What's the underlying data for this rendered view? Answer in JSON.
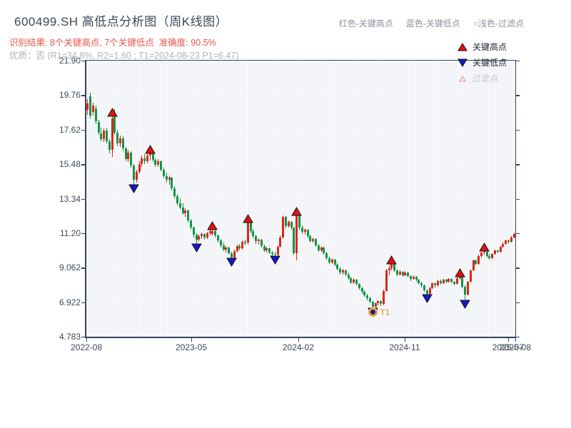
{
  "header": {
    "title": "600499.SH 高低点分析图（周K线图）",
    "top_legend": {
      "high_label": "红色-关键高点",
      "low_label": "蓝色-关键低点",
      "filter_label": "○浅色-过滤点"
    },
    "result_line": "识别结果: 8个关键高点, 7个关键低点  准确度: 90.5%",
    "quality_line": "优质：否 (R1=34.8%, R2=1.60 ; T1=2024-08-23 P1=6.47)"
  },
  "chart_data": {
    "type": "candlestick",
    "title": "600499.SH 高低点分析图（周K线图）",
    "x_axis": "weekly candles 2022-08 to 2025-08",
    "ylim": [
      4.783,
      21.9
    ],
    "grid": true,
    "y_ticks": [
      {
        "label": "21.90",
        "value": 21.9
      },
      {
        "label": "19.76",
        "value": 19.76
      },
      {
        "label": "17.62",
        "value": 17.62
      },
      {
        "label": "15.48",
        "value": 15.48
      },
      {
        "label": "13.34",
        "value": 13.34
      },
      {
        "label": "11.20",
        "value": 11.2
      },
      {
        "label": "9.062",
        "value": 9.062
      },
      {
        "label": "6.922",
        "value": 6.922
      },
      {
        "label": "4.783",
        "value": 4.783
      }
    ],
    "x_ticks": [
      {
        "label": "2022-08",
        "pos": 0.0
      },
      {
        "label": "2023-05",
        "pos": 0.2446
      },
      {
        "label": "2024-02",
        "pos": 0.494
      },
      {
        "label": "2024-11",
        "pos": 0.742
      },
      {
        "label": "2025-07",
        "pos": 0.983
      },
      {
        "label": "2025-08",
        "pos": 1.0
      }
    ],
    "legend": {
      "items": [
        {
          "label": "关键高点",
          "type": "key-high"
        },
        {
          "label": "关键低点",
          "type": "key-low"
        },
        {
          "label": "过滤点",
          "type": "filtered"
        }
      ]
    },
    "colors": {
      "up": "#e02417",
      "down": "#0e9648",
      "key_high": "#e80f0f",
      "key_low": "#1717cf",
      "t1_ring": "#f0a32f",
      "filtered": "#e09090"
    },
    "markers": {
      "key_highs": [
        {
          "week": 9,
          "price": 18.7
        },
        {
          "week": 23,
          "price": 16.4
        },
        {
          "week": 46,
          "price": 11.65
        },
        {
          "week": 59,
          "price": 12.1
        },
        {
          "week": 77,
          "price": 12.55
        },
        {
          "week": 112,
          "price": 9.55
        },
        {
          "week": 137,
          "price": 8.75
        },
        {
          "week": 146,
          "price": 10.35
        }
      ],
      "key_lows": [
        {
          "week": 17,
          "price": 13.95
        },
        {
          "week": 40,
          "price": 10.3
        },
        {
          "week": 53,
          "price": 9.4
        },
        {
          "week": 69,
          "price": 9.55
        },
        {
          "week": 105,
          "price": 6.3
        },
        {
          "week": 125,
          "price": 7.15
        },
        {
          "week": 139,
          "price": 6.8
        }
      ],
      "t1": {
        "week": 105,
        "price": 6.3,
        "label": "T1"
      }
    },
    "candles": [
      [
        18.85,
        19.5,
        18.55,
        19.25
      ],
      [
        19.7,
        19.9,
        18.3,
        18.5
      ],
      [
        18.7,
        19.3,
        18.5,
        19.1
      ],
      [
        18.95,
        19.1,
        17.95,
        18.15
      ],
      [
        18.1,
        18.25,
        17.3,
        17.45
      ],
      [
        17.4,
        17.75,
        16.9,
        17.05
      ],
      [
        17.05,
        17.7,
        16.85,
        17.55
      ],
      [
        17.55,
        17.75,
        16.75,
        16.9
      ],
      [
        16.9,
        17.05,
        16.15,
        16.35
      ],
      [
        16.35,
        18.5,
        15.95,
        18.3
      ],
      [
        18.6,
        18.9,
        17.3,
        17.45
      ],
      [
        17.45,
        17.6,
        16.6,
        16.75
      ],
      [
        16.75,
        17.25,
        16.55,
        17.1
      ],
      [
        17.1,
        17.2,
        16.3,
        16.45
      ],
      [
        16.45,
        16.55,
        15.65,
        15.8
      ],
      [
        15.8,
        16.35,
        15.6,
        16.2
      ],
      [
        16.2,
        16.3,
        15.25,
        15.4
      ],
      [
        15.4,
        15.5,
        14.2,
        14.5
      ],
      [
        14.5,
        15.15,
        14.35,
        15.0
      ],
      [
        15.0,
        15.65,
        14.9,
        15.5
      ],
      [
        15.5,
        16.0,
        15.3,
        15.85
      ],
      [
        15.85,
        16.1,
        15.5,
        15.65
      ],
      [
        15.65,
        16.1,
        15.55,
        16.0
      ],
      [
        16.0,
        16.3,
        15.7,
        16.15
      ],
      [
        16.15,
        16.2,
        15.6,
        15.75
      ],
      [
        15.75,
        15.85,
        15.3,
        15.45
      ],
      [
        15.45,
        15.8,
        15.3,
        15.65
      ],
      [
        15.65,
        15.7,
        15.05,
        15.15
      ],
      [
        15.15,
        15.25,
        14.6,
        14.75
      ],
      [
        14.75,
        14.95,
        14.35,
        14.5
      ],
      [
        14.5,
        14.8,
        14.2,
        14.65
      ],
      [
        14.65,
        14.7,
        13.85,
        14.0
      ],
      [
        14.0,
        14.1,
        13.35,
        13.5
      ],
      [
        13.5,
        13.65,
        12.9,
        13.05
      ],
      [
        13.05,
        13.35,
        12.7,
        12.8
      ],
      [
        12.8,
        13.05,
        12.35,
        12.45
      ],
      [
        12.45,
        12.75,
        12.2,
        12.6
      ],
      [
        12.6,
        12.65,
        11.85,
        12.0
      ],
      [
        12.0,
        12.1,
        11.4,
        11.55
      ],
      [
        11.55,
        11.65,
        10.95,
        11.1
      ],
      [
        11.1,
        11.2,
        10.55,
        10.8
      ],
      [
        10.8,
        11.1,
        10.7,
        11.0
      ],
      [
        11.0,
        11.25,
        10.85,
        11.15
      ],
      [
        11.15,
        11.2,
        10.8,
        10.95
      ],
      [
        10.95,
        11.3,
        10.85,
        11.2
      ],
      [
        11.2,
        11.45,
        11.05,
        11.35
      ],
      [
        11.15,
        11.45,
        11.05,
        11.35
      ],
      [
        11.35,
        11.4,
        10.95,
        11.05
      ],
      [
        11.05,
        11.1,
        10.6,
        10.75
      ],
      [
        10.75,
        10.85,
        10.3,
        10.45
      ],
      [
        10.45,
        10.6,
        10.1,
        10.2
      ],
      [
        10.2,
        10.4,
        10.0,
        10.3
      ],
      [
        10.3,
        10.35,
        9.85,
        9.95
      ],
      [
        9.95,
        10.05,
        9.55,
        9.7
      ],
      [
        9.7,
        10.2,
        9.65,
        10.1
      ],
      [
        10.1,
        10.5,
        10.0,
        10.4
      ],
      [
        10.4,
        10.55,
        10.15,
        10.25
      ],
      [
        10.25,
        10.75,
        10.2,
        10.65
      ],
      [
        10.65,
        10.8,
        10.45,
        10.6
      ],
      [
        10.6,
        12.0,
        10.5,
        11.85
      ],
      [
        11.85,
        11.9,
        11.2,
        11.35
      ],
      [
        11.35,
        11.45,
        10.9,
        11.0
      ],
      [
        11.0,
        11.1,
        10.55,
        10.7
      ],
      [
        10.7,
        10.9,
        10.5,
        10.8
      ],
      [
        10.8,
        10.85,
        10.3,
        10.4
      ],
      [
        10.4,
        10.5,
        10.05,
        10.15
      ],
      [
        10.15,
        10.35,
        10.0,
        10.25
      ],
      [
        10.25,
        10.3,
        9.9,
        10.0
      ],
      [
        10.0,
        10.1,
        9.8,
        9.9
      ],
      [
        9.9,
        10.05,
        9.7,
        9.85
      ],
      [
        9.85,
        10.45,
        9.8,
        10.35
      ],
      [
        10.35,
        11.05,
        10.3,
        10.95
      ],
      [
        10.95,
        12.3,
        10.9,
        12.2
      ],
      [
        12.2,
        12.25,
        11.5,
        11.65
      ],
      [
        11.65,
        12.0,
        11.55,
        11.9
      ],
      [
        11.9,
        11.95,
        11.4,
        11.55
      ],
      [
        11.55,
        11.6,
        9.85,
        9.95
      ],
      [
        9.95,
        12.45,
        9.5,
        12.3
      ],
      [
        12.3,
        12.35,
        11.4,
        11.55
      ],
      [
        11.55,
        11.7,
        11.15,
        11.3
      ],
      [
        11.3,
        11.5,
        11.1,
        11.4
      ],
      [
        11.4,
        11.45,
        10.9,
        11.0
      ],
      [
        11.0,
        11.1,
        10.6,
        10.7
      ],
      [
        10.7,
        10.95,
        10.6,
        10.85
      ],
      [
        10.85,
        10.9,
        10.35,
        10.45
      ],
      [
        10.45,
        10.55,
        10.05,
        10.15
      ],
      [
        10.15,
        10.4,
        10.05,
        10.3
      ],
      [
        10.3,
        10.35,
        9.85,
        9.95
      ],
      [
        9.95,
        10.05,
        9.55,
        9.65
      ],
      [
        9.65,
        9.75,
        9.3,
        9.4
      ],
      [
        9.4,
        9.65,
        9.3,
        9.55
      ],
      [
        9.55,
        9.6,
        9.15,
        9.25
      ],
      [
        9.25,
        9.35,
        8.9,
        9.0
      ],
      [
        9.0,
        9.1,
        8.65,
        8.75
      ],
      [
        8.75,
        9.0,
        8.65,
        8.9
      ],
      [
        8.9,
        8.95,
        8.55,
        8.65
      ],
      [
        8.65,
        8.75,
        8.3,
        8.4
      ],
      [
        8.4,
        8.5,
        8.05,
        8.15
      ],
      [
        8.15,
        8.4,
        8.05,
        8.3
      ],
      [
        8.3,
        8.35,
        7.95,
        8.05
      ],
      [
        8.05,
        8.1,
        7.7,
        7.8
      ],
      [
        7.8,
        7.9,
        7.45,
        7.55
      ],
      [
        7.55,
        7.65,
        7.25,
        7.35
      ],
      [
        7.35,
        7.45,
        7.05,
        7.15
      ],
      [
        7.15,
        7.25,
        6.85,
        6.95
      ],
      [
        6.95,
        7.0,
        6.47,
        6.65
      ],
      [
        6.65,
        6.9,
        6.6,
        6.85
      ],
      [
        6.85,
        7.05,
        6.75,
        7.0
      ],
      [
        7.0,
        7.05,
        6.7,
        6.8
      ],
      [
        6.8,
        7.7,
        6.75,
        7.6
      ],
      [
        7.6,
        9.0,
        7.55,
        8.9
      ],
      [
        8.9,
        9.2,
        8.6,
        9.05
      ],
      [
        9.05,
        9.45,
        8.9,
        9.3
      ],
      [
        9.3,
        9.35,
        8.8,
        8.9
      ],
      [
        8.9,
        8.95,
        8.55,
        8.65
      ],
      [
        8.65,
        8.9,
        8.6,
        8.8
      ],
      [
        8.8,
        8.85,
        8.5,
        8.6
      ],
      [
        8.6,
        8.85,
        8.55,
        8.75
      ],
      [
        8.75,
        8.8,
        8.45,
        8.55
      ],
      [
        8.55,
        8.6,
        8.25,
        8.35
      ],
      [
        8.35,
        8.6,
        8.3,
        8.5
      ],
      [
        8.5,
        8.55,
        8.2,
        8.3
      ],
      [
        8.3,
        8.35,
        8.0,
        8.1
      ],
      [
        8.1,
        8.2,
        7.85,
        7.95
      ],
      [
        7.95,
        8.0,
        7.55,
        7.65
      ],
      [
        7.65,
        7.7,
        7.3,
        7.45
      ],
      [
        7.45,
        7.9,
        7.4,
        7.8
      ],
      [
        7.8,
        8.15,
        7.75,
        8.1
      ],
      [
        8.1,
        8.15,
        7.85,
        7.95
      ],
      [
        7.95,
        8.3,
        7.9,
        8.25
      ],
      [
        8.25,
        8.3,
        8.0,
        8.1
      ],
      [
        8.1,
        8.35,
        8.05,
        8.3
      ],
      [
        8.3,
        8.35,
        8.1,
        8.2
      ],
      [
        8.2,
        8.4,
        8.15,
        8.35
      ],
      [
        8.35,
        8.4,
        8.1,
        8.2
      ],
      [
        8.2,
        8.25,
        7.95,
        8.05
      ],
      [
        8.05,
        8.45,
        8.0,
        8.4
      ],
      [
        8.4,
        8.65,
        8.3,
        8.55
      ],
      [
        8.55,
        8.6,
        7.8,
        7.9
      ],
      [
        7.9,
        7.95,
        7.1,
        7.4
      ],
      [
        7.4,
        8.25,
        7.35,
        8.2
      ],
      [
        8.2,
        8.95,
        8.15,
        8.9
      ],
      [
        8.9,
        9.55,
        8.85,
        9.5
      ],
      [
        9.5,
        9.55,
        9.2,
        9.3
      ],
      [
        9.3,
        9.85,
        9.25,
        9.8
      ],
      [
        9.8,
        10.05,
        9.7,
        10.0
      ],
      [
        10.0,
        10.15,
        9.85,
        10.05
      ],
      [
        10.05,
        10.1,
        9.7,
        9.8
      ],
      [
        9.8,
        9.9,
        9.55,
        9.65
      ],
      [
        9.65,
        9.95,
        9.6,
        9.9
      ],
      [
        9.9,
        10.2,
        9.85,
        10.15
      ],
      [
        10.15,
        10.2,
        9.95,
        10.05
      ],
      [
        10.05,
        10.4,
        10.0,
        10.35
      ],
      [
        10.35,
        10.6,
        10.3,
        10.55
      ],
      [
        10.55,
        10.8,
        10.5,
        10.75
      ],
      [
        10.75,
        10.8,
        10.55,
        10.65
      ],
      [
        10.65,
        11.0,
        10.6,
        10.95
      ],
      [
        10.95,
        11.25,
        10.9,
        11.15
      ]
    ]
  }
}
